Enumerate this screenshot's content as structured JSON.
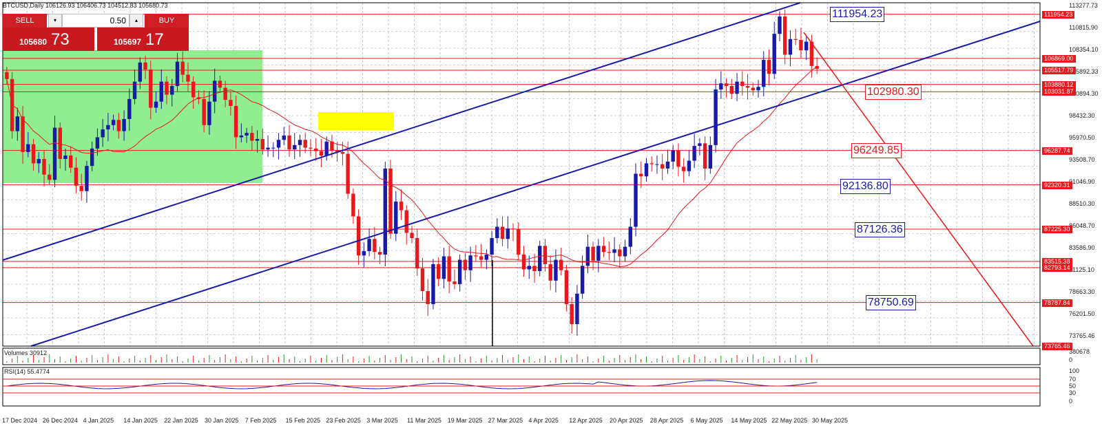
{
  "header": {
    "symbol_line": "BTCUSD,Daily  106126.93 106406.73 104512.83 105680.73"
  },
  "trade_panel": {
    "sell_label": "SELL",
    "buy_label": "BUY",
    "volume": "0.50",
    "sell_small": "105680",
    "sell_big": "73",
    "buy_small": "105697",
    "buy_big": "17"
  },
  "price_axis": [
    "113277.73",
    "110815.90",
    "108354.10",
    "105892.33",
    "100894.30",
    "98432.30",
    "95970.50",
    "93508.70",
    "91046.90",
    "88510.30",
    "86048.70",
    "83586.90",
    "81125.10",
    "78663.30",
    "76201.50",
    "73765.46"
  ],
  "price_labels": [
    {
      "text": "111954.23",
      "price": 111954.23
    },
    {
      "text": "106869.00",
      "price": 106869.0
    },
    {
      "text": "105517.79",
      "price": 105517.79
    },
    {
      "text": "103880.12",
      "price": 103880.12
    },
    {
      "text": "103031.87",
      "price": 103031.87
    },
    {
      "text": "96287.74",
      "price": 96287.74
    },
    {
      "text": "92320.31",
      "price": 92320.31
    },
    {
      "text": "87225.30",
      "price": 87225.3
    },
    {
      "text": "83515.38",
      "price": 83515.38
    },
    {
      "text": "82793.14",
      "price": 82793.14
    },
    {
      "text": "78787.84",
      "price": 78787.84
    },
    {
      "text": "73765.46",
      "price": 73765.46
    }
  ],
  "annotations": [
    {
      "text": "111954.23",
      "color": "blue",
      "price": 111954.23
    },
    {
      "text": "102980.30",
      "color": "red",
      "price": 102980.3
    },
    {
      "text": "96249.85",
      "color": "red",
      "price": 96249.85
    },
    {
      "text": "92136.80",
      "color": "blue",
      "price": 92136.8
    },
    {
      "text": "87126.36",
      "color": "blue",
      "price": 87126.36
    },
    {
      "text": "78750.69",
      "color": "blue",
      "price": 78750.69
    }
  ],
  "dates": [
    "17 Dec 2024",
    "26 Dec 2024",
    "4 Jan 2025",
    "14 Jan 2025",
    "22 Jan 2025",
    "30 Jan 2025",
    "7 Feb 2025",
    "15 Feb 2025",
    "23 Feb 2025",
    "3 Mar 2025",
    "11 Mar 2025",
    "19 Mar 2025",
    "27 Mar 2025",
    "4 Apr 2025",
    "12 Apr 2025",
    "20 Apr 2025",
    "28 Apr 2025",
    "6 May 2025",
    "14 May 2025",
    "22 May 2025",
    "30 May 2025"
  ],
  "volume_panel": {
    "label": "Volumes 30912",
    "axis_top": "380678",
    "axis_bottom": "0"
  },
  "rsi_panel": {
    "label": "RSI(14) 55.4774",
    "levels": [
      "100",
      "70",
      "50",
      "30",
      "0"
    ]
  },
  "colors": {
    "bull": "#1a1aa8",
    "bear": "#e8191c",
    "zone_green": "#90ee90",
    "zone_yellow": "#ffff00",
    "grid": "#9aa4b8"
  },
  "chart_data": {
    "type": "candlestick",
    "y_range": [
      73765.46,
      113277.73
    ],
    "closes": [
      104500,
      98500,
      100200,
      96100,
      97000,
      94800,
      95300,
      93500,
      92900,
      98900,
      95300,
      95700,
      94300,
      92200,
      91600,
      94500,
      96500,
      97800,
      98700,
      99200,
      99800,
      98500,
      99900,
      102200,
      104200,
      106400,
      105600,
      101200,
      101900,
      104200,
      102700,
      103700,
      106500,
      105000,
      104200,
      102400,
      102200,
      99200,
      101900,
      104300,
      103500,
      102100,
      101400,
      97800,
      98000,
      98300,
      97400,
      97600,
      96400,
      96600,
      96600,
      97500,
      98000,
      96400,
      96900,
      97500,
      96600,
      96500,
      96200,
      95700,
      97300,
      96300,
      96100,
      95900,
      91300,
      88700,
      84200,
      84700,
      86100,
      84600,
      84300,
      94200,
      86700,
      90400,
      89400,
      86800,
      86200,
      82700,
      80100,
      78600,
      83200,
      81500,
      84100,
      81200,
      80900,
      83700,
      82500,
      84200,
      84100,
      83700,
      84300,
      86200,
      87500,
      86100,
      87300,
      87200,
      84300,
      82600,
      83000,
      82400,
      85300,
      83200,
      81300,
      83700,
      82500,
      78600,
      76300,
      79800,
      83000,
      85200,
      83600,
      85300,
      84600,
      84500,
      84900,
      84100,
      85200,
      87500,
      93600,
      93300,
      94800,
      94700,
      94700,
      94200,
      95000,
      96300,
      94400,
      93900,
      95100,
      96800,
      97100,
      94200,
      96900,
      103300,
      104000,
      103700,
      102800,
      104200,
      103700,
      103500,
      103200,
      103600,
      106700,
      105100,
      109700,
      111700,
      107300,
      109100,
      109000,
      107800,
      108800,
      106000,
      105680
    ]
  }
}
